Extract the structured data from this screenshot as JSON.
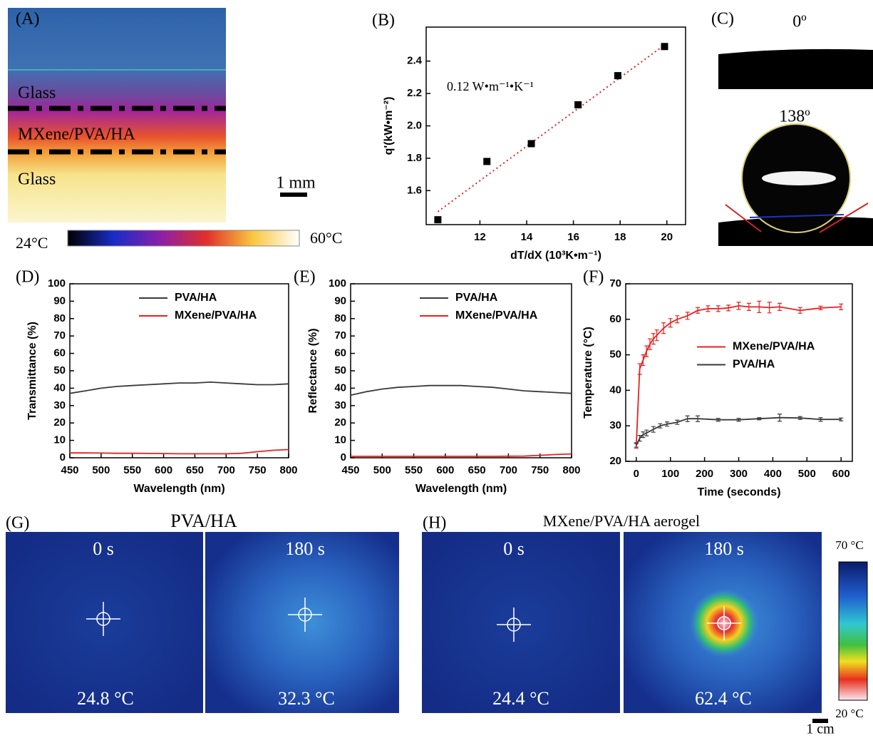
{
  "panels": {
    "A": {
      "label": "(A)",
      "layer_top": "Glass",
      "layer_middle": "MXene/PVA/HA",
      "layer_bottom": "Glass",
      "scale_bar": "1 mm",
      "colorbar_min": "24°C",
      "colorbar_max": "60°C"
    },
    "C": {
      "label": "(C)",
      "angle_top": "0º",
      "angle_bottom": "138º"
    },
    "G": {
      "label": "(G)",
      "title": "PVA/HA",
      "time_left": "0 s",
      "time_right": "180 s",
      "temp_left": "24.8 °C",
      "temp_right": "32.3 °C"
    },
    "H": {
      "label": "(H)",
      "title": "MXene/PVA/HA aerogel",
      "time_left": "0 s",
      "time_right": "180 s",
      "temp_left": "24.4 °C",
      "temp_right": "62.4 °C",
      "colorbar_max": "70 °C",
      "colorbar_min": "20 °C",
      "scale_bar": "1 cm"
    }
  },
  "chart_data": [
    {
      "type": "scatter",
      "panel_label": "(B)",
      "x_label": "dT/dX (10³K•m⁻¹)",
      "y_label": "q'(kW•m⁻²)",
      "annotation": "0.12 W•m⁻¹•K⁻¹",
      "x": [
        10.2,
        12.3,
        14.2,
        16.2,
        17.9,
        19.9
      ],
      "values": [
        1.42,
        1.78,
        1.89,
        2.13,
        2.31,
        2.49
      ],
      "color": "#000000",
      "fit_line": {
        "x": [
          10.2,
          19.9
        ],
        "values": [
          1.47,
          2.5
        ],
        "color": "#e8201f"
      },
      "xlim": [
        9.7,
        20.8
      ],
      "xticks": [
        12,
        14,
        16,
        18,
        20
      ],
      "ylim": [
        1.39,
        2.61
      ],
      "yticks": [
        1.6,
        1.8,
        {
          "value": 2,
          "label": "2.0"
        },
        2.2,
        2.4
      ]
    },
    {
      "type": "line",
      "panel_label": "(D)",
      "x_label": "Wavelength (nm)",
      "y_label": "Transmittance (%)",
      "legend": "upper center",
      "x": [
        450,
        475,
        500,
        525,
        550,
        575,
        600,
        625,
        650,
        675,
        700,
        725,
        750,
        775,
        800
      ],
      "series": [
        {
          "name": "PVA/HA",
          "color": "#3a3a3a",
          "values": [
            37,
            38.5,
            40,
            41,
            41.5,
            42,
            42.5,
            43,
            43,
            43.5,
            43,
            42.5,
            42,
            42,
            42.5
          ]
        },
        {
          "name": "MXene/PVA/HA",
          "color": "#e8201f",
          "values": [
            2.8,
            2.8,
            2.7,
            2.6,
            2.6,
            2.5,
            2.4,
            2.3,
            2.3,
            2.3,
            2.3,
            2.6,
            3.5,
            4.3,
            4.7
          ]
        }
      ],
      "xlim": [
        450,
        800
      ],
      "xticks": [
        450,
        500,
        550,
        600,
        650,
        700,
        750,
        800
      ],
      "ylim": [
        0,
        100
      ],
      "yticks": [
        0,
        10,
        20,
        30,
        40,
        50,
        60,
        70,
        80,
        90,
        100
      ]
    },
    {
      "type": "line",
      "panel_label": "(E)",
      "x_label": "Wavelength (nm)",
      "y_label": "Reflectance (%)",
      "legend": "upper center",
      "x": [
        450,
        475,
        500,
        525,
        550,
        575,
        600,
        625,
        650,
        675,
        700,
        725,
        750,
        775,
        800
      ],
      "series": [
        {
          "name": "PVA/HA",
          "color": "#3a3a3a",
          "values": [
            36,
            38,
            39.5,
            40.5,
            41,
            41.5,
            41.5,
            41.5,
            41,
            40.5,
            39.5,
            38.5,
            38,
            37.5,
            37
          ]
        },
        {
          "name": "MXene/PVA/HA",
          "color": "#e8201f",
          "values": [
            0.8,
            0.8,
            0.8,
            0.8,
            0.8,
            0.8,
            0.8,
            0.8,
            0.8,
            0.8,
            0.9,
            1,
            1.4,
            1.9,
            2.2
          ]
        }
      ],
      "xlim": [
        450,
        800
      ],
      "xticks": [
        450,
        500,
        550,
        600,
        650,
        700,
        750,
        800
      ],
      "ylim": [
        0,
        100
      ],
      "yticks": [
        0,
        10,
        20,
        30,
        40,
        50,
        60,
        70,
        80,
        90,
        100
      ]
    },
    {
      "type": "line",
      "panel_label": "(F)",
      "x_label": "Time (seconds)",
      "y_label": "Temperature (°C)",
      "legend": "center right",
      "series": [
        {
          "name": "MXene/PVA/HA",
          "color": "#e8201f",
          "x": [
            0,
            10,
            20,
            30,
            40,
            50,
            60,
            80,
            100,
            120,
            150,
            180,
            210,
            240,
            270,
            300,
            330,
            360,
            390,
            420,
            480,
            540,
            600
          ],
          "values": [
            24.5,
            46,
            48.5,
            51,
            53,
            54.5,
            55.5,
            57.5,
            59,
            60,
            61,
            62.5,
            63,
            63,
            63.2,
            63.8,
            63.5,
            63.5,
            63.3,
            63.5,
            62.5,
            63.2,
            63.5
          ],
          "errors": [
            0.8,
            1.5,
            1.5,
            1.5,
            1.5,
            1.5,
            1.5,
            1.5,
            1.2,
            1,
            1,
            0.8,
            0.8,
            0.8,
            0.8,
            1,
            1,
            1.6,
            1.5,
            1,
            0.8,
            0.5,
            0.8
          ]
        },
        {
          "name": "PVA/HA",
          "color": "#3a3a3a",
          "x": [
            0,
            10,
            20,
            30,
            50,
            70,
            90,
            120,
            150,
            180,
            240,
            300,
            360,
            420,
            480,
            540,
            600
          ],
          "values": [
            24.5,
            26.5,
            27.5,
            28,
            29,
            30,
            30.5,
            31,
            32,
            32,
            31.7,
            31.7,
            32,
            32.3,
            32.2,
            31.8,
            31.8
          ],
          "errors": [
            0.5,
            0.8,
            0.8,
            0.8,
            0.8,
            0.6,
            0.6,
            0.6,
            0.8,
            0.8,
            0.4,
            0.4,
            0.3,
            1,
            0.4,
            0.5,
            0.4
          ]
        }
      ],
      "xlim": [
        -31,
        633
      ],
      "xticks": [
        0,
        100,
        200,
        300,
        400,
        500,
        600
      ],
      "ylim": [
        20,
        70
      ],
      "yticks": [
        20,
        30,
        40,
        50,
        60,
        70
      ]
    }
  ]
}
